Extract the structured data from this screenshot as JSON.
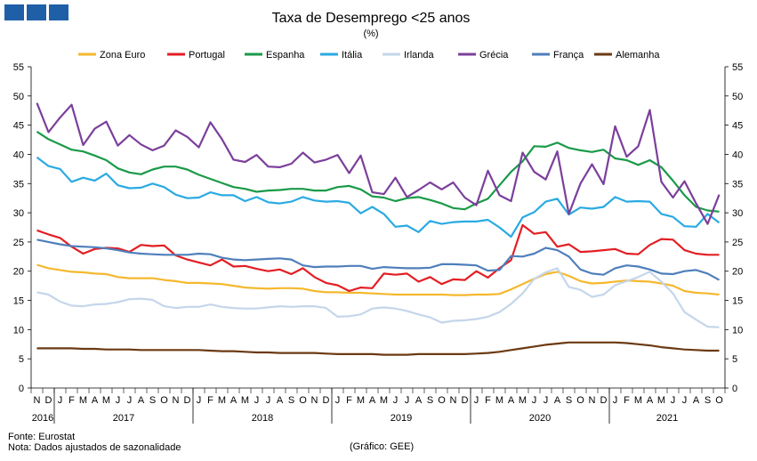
{
  "logo": {
    "icon": "logo-squares-icon",
    "color": "#1f5fa8"
  },
  "footer": {
    "source": "Fonte: Eurostat",
    "note": "Nota: Dados ajustados de sazonalidade",
    "credit": "(Gráfico: GEE)"
  },
  "chart_data": {
    "type": "line",
    "title": "Taxa de Desemprego <25 anos",
    "subtitle": "(%)",
    "xlabel": "",
    "ylabel": "",
    "ylim": [
      0,
      55
    ],
    "yticks": [
      0,
      5,
      10,
      15,
      20,
      25,
      30,
      35,
      40,
      45,
      50,
      55
    ],
    "grid": false,
    "legend_position": "top",
    "month_labels": [
      "N",
      "D",
      "J",
      "F",
      "M",
      "A",
      "M",
      "J",
      "J",
      "A",
      "S",
      "O",
      "N",
      "D",
      "J",
      "F",
      "M",
      "A",
      "M",
      "J",
      "J",
      "A",
      "S",
      "O",
      "N",
      "D",
      "J",
      "F",
      "M",
      "A",
      "M",
      "J",
      "J",
      "A",
      "S",
      "O",
      "N",
      "D",
      "J",
      "F",
      "M",
      "A",
      "M",
      "J",
      "J",
      "A",
      "S",
      "O",
      "N",
      "D",
      "J",
      "F",
      "M",
      "A",
      "M",
      "J",
      "J",
      "A",
      "S",
      "O"
    ],
    "year_labels": [
      {
        "label": "2016",
        "start": 0,
        "end": 1
      },
      {
        "label": "2017",
        "start": 2,
        "end": 13
      },
      {
        "label": "2018",
        "start": 14,
        "end": 25
      },
      {
        "label": "2019",
        "start": 26,
        "end": 37
      },
      {
        "label": "2020",
        "start": 38,
        "end": 49
      },
      {
        "label": "2021",
        "start": 50,
        "end": 59
      }
    ],
    "series": [
      {
        "name": "Zona Euro",
        "color": "#f5b82e",
        "values": [
          21.1,
          20.5,
          20.2,
          19.9,
          19.8,
          19.6,
          19.5,
          19.0,
          18.8,
          18.8,
          18.8,
          18.5,
          18.3,
          18.0,
          18.0,
          17.9,
          17.8,
          17.5,
          17.2,
          17.1,
          17.0,
          17.1,
          17.1,
          17.0,
          16.6,
          16.4,
          16.4,
          16.3,
          16.3,
          16.2,
          16.1,
          16.0,
          16.0,
          16.0,
          16.0,
          16.0,
          15.9,
          15.9,
          16.0,
          16.0,
          16.1,
          16.9,
          17.8,
          18.7,
          19.5,
          19.9,
          19.2,
          18.3,
          17.9,
          18.0,
          18.2,
          18.4,
          18.3,
          18.2,
          17.9,
          17.5,
          16.6,
          16.3,
          16.2,
          16.0
        ]
      },
      {
        "name": "Portugal",
        "color": "#e31e24",
        "values": [
          27.0,
          26.3,
          25.7,
          24.2,
          23.0,
          23.8,
          24.0,
          23.9,
          23.3,
          24.5,
          24.3,
          24.4,
          22.7,
          22.0,
          21.5,
          21.0,
          22.0,
          20.8,
          20.9,
          20.4,
          20.0,
          20.3,
          19.5,
          20.5,
          19.0,
          18.0,
          17.6,
          16.6,
          17.2,
          17.1,
          19.6,
          19.4,
          19.6,
          18.2,
          19.0,
          17.8,
          18.6,
          18.5,
          20.0,
          18.9,
          20.5,
          21.9,
          27.9,
          26.4,
          26.7,
          24.2,
          24.6,
          23.3,
          23.4,
          23.6,
          23.8,
          23.0,
          22.9,
          24.5,
          25.5,
          25.4,
          23.6,
          23.0,
          22.8,
          22.8
        ]
      },
      {
        "name": "Espanha",
        "color": "#1a9a48",
        "values": [
          43.9,
          42.6,
          41.7,
          40.8,
          40.5,
          39.8,
          39.0,
          37.6,
          36.9,
          36.6,
          37.4,
          37.9,
          37.9,
          37.4,
          36.5,
          35.8,
          35.1,
          34.4,
          34.1,
          33.6,
          33.8,
          33.9,
          34.1,
          34.1,
          33.8,
          33.8,
          34.4,
          34.6,
          34.0,
          32.8,
          32.6,
          32.0,
          32.5,
          32.7,
          32.2,
          31.6,
          30.8,
          30.6,
          31.6,
          32.4,
          34.7,
          37.0,
          38.8,
          41.4,
          41.3,
          42.0,
          41.1,
          40.7,
          40.4,
          40.8,
          39.3,
          39.0,
          38.2,
          39.0,
          37.8,
          35.5,
          33.0,
          31.0,
          30.4,
          30.2
        ]
      },
      {
        "name": "Itália",
        "color": "#2aaae2",
        "values": [
          39.5,
          38.0,
          37.5,
          35.3,
          36.0,
          35.5,
          36.7,
          34.7,
          34.2,
          34.3,
          35.0,
          34.4,
          33.1,
          32.5,
          32.6,
          33.5,
          33.0,
          33.0,
          32.0,
          32.7,
          31.8,
          31.6,
          31.9,
          32.7,
          32.1,
          31.9,
          32.0,
          31.7,
          29.9,
          31.0,
          29.8,
          27.6,
          27.8,
          26.7,
          28.6,
          28.1,
          28.4,
          28.5,
          28.5,
          28.8,
          27.5,
          25.9,
          29.2,
          30.1,
          31.9,
          32.4,
          29.7,
          30.9,
          30.7,
          31.0,
          32.7,
          31.9,
          32.0,
          31.9,
          29.8,
          29.3,
          27.7,
          27.6,
          29.8,
          28.3
        ]
      },
      {
        "name": "Irlanda",
        "color": "#c5d6ea",
        "values": [
          16.4,
          16.0,
          14.8,
          14.1,
          14.0,
          14.3,
          14.4,
          14.7,
          15.2,
          15.3,
          15.1,
          14.0,
          13.7,
          13.9,
          13.9,
          14.3,
          13.9,
          13.7,
          13.6,
          13.6,
          13.8,
          14.0,
          13.9,
          14.0,
          14.0,
          13.7,
          12.2,
          12.3,
          12.6,
          13.6,
          13.8,
          13.6,
          13.2,
          12.6,
          12.1,
          11.2,
          11.5,
          11.6,
          11.8,
          12.2,
          13.0,
          14.4,
          16.2,
          18.7,
          19.8,
          20.5,
          17.3,
          16.8,
          15.6,
          16.0,
          17.6,
          18.3,
          19.0,
          19.9,
          18.2,
          16.2,
          13.0,
          11.7,
          10.5,
          10.4
        ]
      },
      {
        "name": "Grécia",
        "color": "#7b3f9b",
        "values": [
          48.8,
          43.8,
          46.3,
          48.5,
          41.6,
          44.4,
          45.6,
          41.5,
          43.3,
          41.7,
          40.7,
          41.5,
          44.1,
          43.0,
          41.2,
          45.5,
          42.6,
          39.1,
          38.7,
          39.9,
          37.9,
          37.8,
          38.4,
          40.3,
          38.6,
          39.1,
          39.9,
          36.8,
          39.8,
          33.5,
          33.2,
          36.0,
          32.7,
          33.9,
          35.2,
          34.0,
          35.2,
          32.6,
          31.3,
          37.2,
          33.0,
          32.0,
          40.3,
          37.0,
          35.7,
          40.5,
          29.8,
          35.0,
          38.3,
          34.9,
          44.8,
          39.6,
          41.4,
          47.6,
          35.3,
          32.6,
          35.4,
          31.6,
          28.1,
          33.1
        ]
      },
      {
        "name": "França",
        "color": "#4f7fbb",
        "values": [
          25.4,
          25.0,
          24.6,
          24.3,
          24.2,
          24.1,
          23.9,
          23.6,
          23.2,
          23.0,
          22.9,
          22.8,
          22.8,
          22.8,
          23.0,
          22.9,
          22.3,
          22.0,
          21.9,
          22.0,
          22.1,
          22.2,
          22.0,
          21.0,
          20.7,
          20.8,
          20.8,
          20.9,
          20.9,
          20.4,
          20.7,
          20.6,
          20.5,
          20.5,
          20.6,
          21.2,
          21.2,
          21.1,
          21.0,
          20.1,
          20.2,
          22.6,
          22.5,
          23.0,
          24.0,
          23.6,
          22.5,
          20.3,
          19.6,
          19.4,
          20.5,
          21.0,
          20.8,
          20.3,
          19.6,
          19.5,
          20.0,
          20.2,
          19.6,
          18.5
        ]
      },
      {
        "name": "Alemanha",
        "color": "#6b3a13",
        "values": [
          6.8,
          6.8,
          6.8,
          6.8,
          6.7,
          6.7,
          6.6,
          6.6,
          6.6,
          6.5,
          6.5,
          6.5,
          6.5,
          6.5,
          6.5,
          6.4,
          6.3,
          6.3,
          6.2,
          6.1,
          6.1,
          6.0,
          6.0,
          6.0,
          6.0,
          5.9,
          5.8,
          5.8,
          5.8,
          5.8,
          5.7,
          5.7,
          5.7,
          5.8,
          5.8,
          5.8,
          5.8,
          5.8,
          5.9,
          6.0,
          6.2,
          6.5,
          6.8,
          7.1,
          7.4,
          7.6,
          7.8,
          7.8,
          7.8,
          7.8,
          7.8,
          7.7,
          7.5,
          7.3,
          7.0,
          6.8,
          6.6,
          6.5,
          6.4,
          6.4
        ]
      }
    ]
  }
}
